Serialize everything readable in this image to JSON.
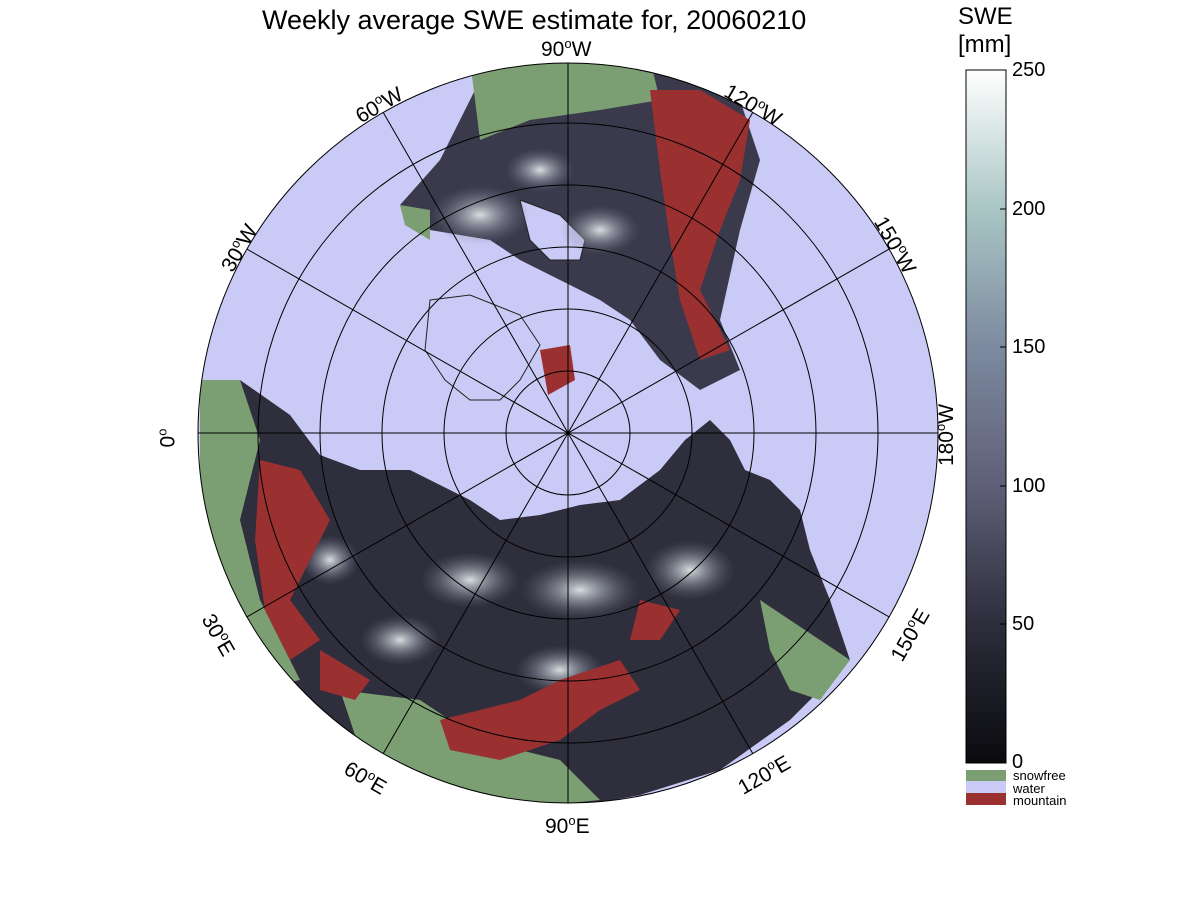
{
  "title": "Weekly average SWE estimate for, 20060210",
  "colorbar": {
    "unit_line1": "SWE",
    "unit_line2": "[mm]",
    "ticks": [
      "0",
      "50",
      "100",
      "150",
      "200",
      "250"
    ],
    "categories": [
      {
        "label": "snowfree",
        "color": "#7b9e72"
      },
      {
        "label": "water",
        "color": "#cacaf6"
      },
      {
        "label": "mountain",
        "color": "#9b3030"
      }
    ]
  },
  "longitude_labels": {
    "w90": {
      "num": "90",
      "dir": "W"
    },
    "w60": {
      "num": "60",
      "dir": "W"
    },
    "w30": {
      "num": "30",
      "dir": "W"
    },
    "zero": {
      "num": "0",
      "dir": ""
    },
    "w120": {
      "num": "120",
      "dir": "W"
    },
    "w150": {
      "num": "150",
      "dir": "W"
    },
    "w180": {
      "num": "180",
      "dir": "W"
    },
    "e30": {
      "num": "30",
      "dir": "E"
    },
    "e60": {
      "num": "60",
      "dir": "E"
    },
    "e90": {
      "num": "90",
      "dir": "E"
    },
    "e120": {
      "num": "120",
      "dir": "E"
    },
    "e150": {
      "num": "150",
      "dir": "E"
    }
  },
  "colors": {
    "water": "#cacaf6",
    "snowfree": "#7b9e72",
    "mountain": "#9b3030",
    "swe_low": "#111118",
    "swe_mid": "#6b6b86",
    "swe_high": "#f4f8f8"
  }
}
